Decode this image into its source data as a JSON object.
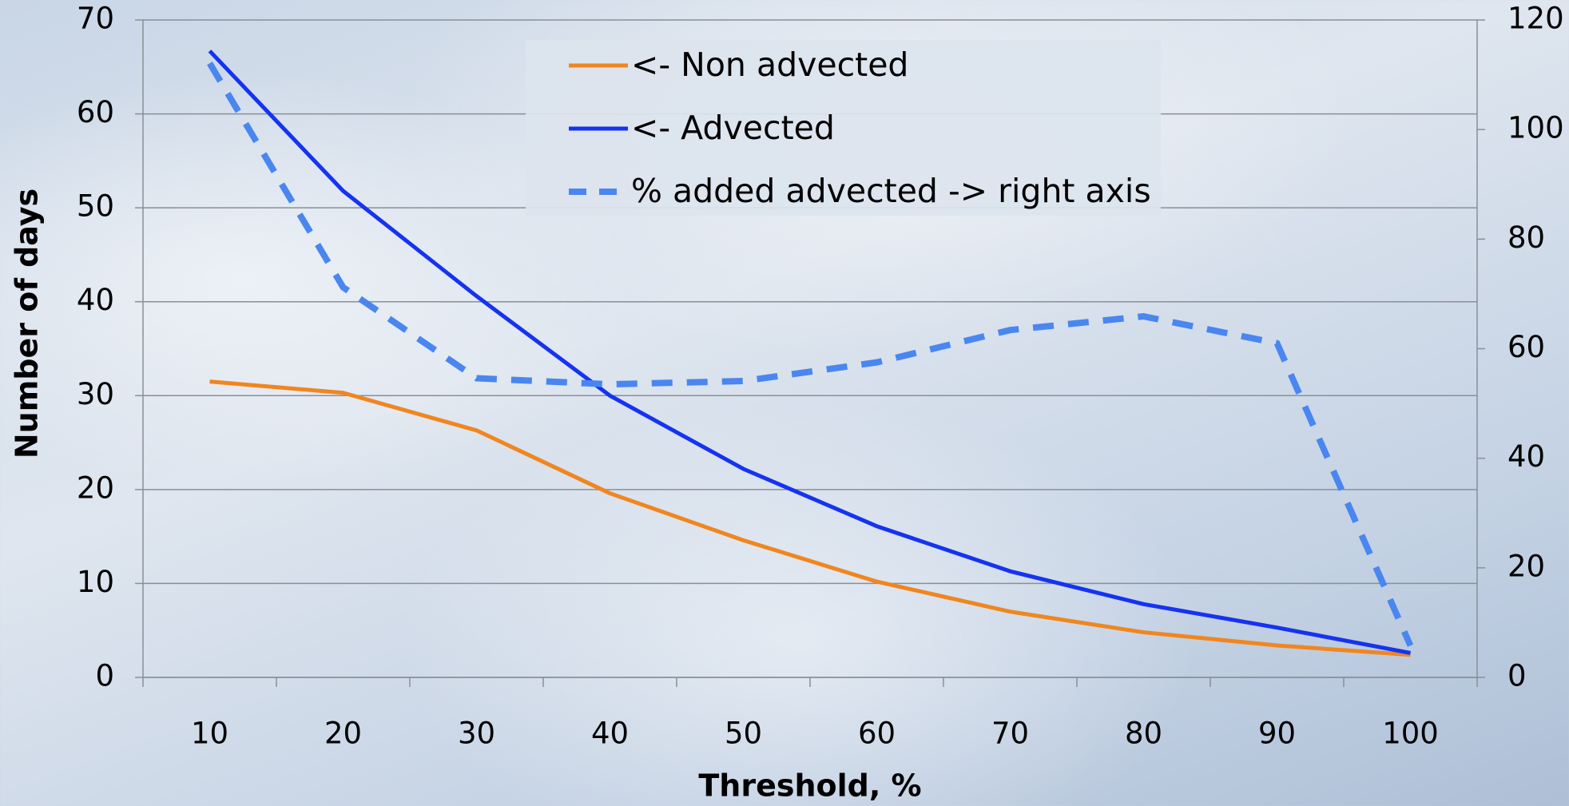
{
  "chart_data": {
    "type": "line",
    "x_label": "Threshold, %",
    "y_label": "Number of days",
    "categories": [
      "10",
      "20",
      "30",
      "40",
      "50",
      "60",
      "70",
      "80",
      "90",
      "100"
    ],
    "series": [
      {
        "name": "<- Non advected",
        "color": "#f0861f",
        "style": "solid",
        "values": [
          31.5,
          30.3,
          26.3,
          19.6,
          14.6,
          10.2,
          7.0,
          4.8,
          3.4,
          2.4
        ]
      },
      {
        "name": "<- Advected",
        "color": "#1533f0",
        "style": "solid",
        "values": [
          66.7,
          51.8,
          40.6,
          30.0,
          22.2,
          16.1,
          11.3,
          7.8,
          5.3,
          2.6
        ]
      },
      {
        "name": "% added advected -> right axis",
        "color": "#4a86f0",
        "style": "dashed",
        "axis": "y2",
        "values": [
          112.1,
          71.2,
          54.6,
          53.5,
          54.1,
          57.5,
          63.4,
          65.9,
          61.0,
          5.8
        ]
      }
    ],
    "ylim": [
      0,
      70
    ],
    "yticks": [
      0,
      10,
      20,
      30,
      40,
      50,
      60,
      70
    ],
    "y2lim": [
      0,
      120
    ],
    "y2ticks": [
      0,
      20,
      40,
      60,
      80,
      100,
      120
    ],
    "grid": true
  }
}
